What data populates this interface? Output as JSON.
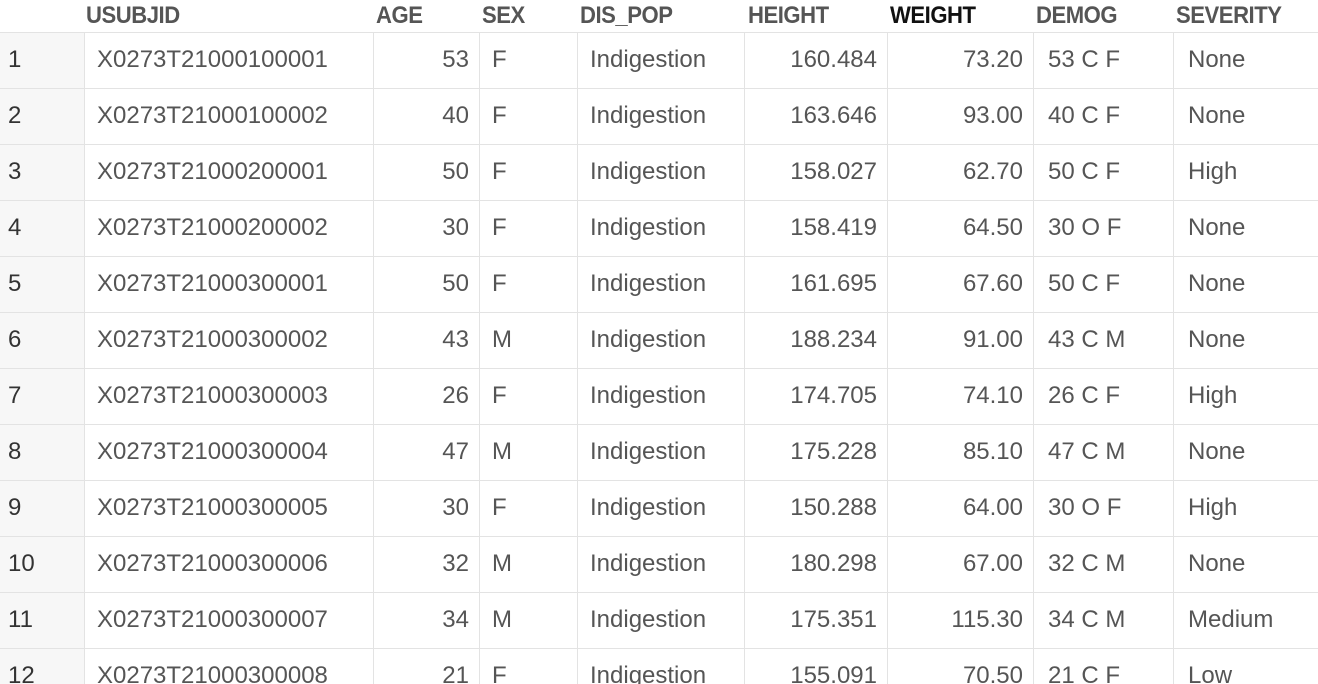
{
  "columns": [
    {
      "key": "usubjid",
      "label": "USUBJID"
    },
    {
      "key": "age",
      "label": "AGE"
    },
    {
      "key": "sex",
      "label": "SEX"
    },
    {
      "key": "dis_pop",
      "label": "DIS_POP"
    },
    {
      "key": "height",
      "label": "HEIGHT"
    },
    {
      "key": "weight",
      "label": "WEIGHT"
    },
    {
      "key": "demog",
      "label": "DEMOG"
    },
    {
      "key": "severity",
      "label": "SEVERITY"
    }
  ],
  "rows": [
    {
      "n": "1",
      "usubjid": "X0273T21000100001",
      "age": "53",
      "sex": "F",
      "dis_pop": "Indigestion",
      "height": "160.484",
      "weight": "73.20",
      "demog": "53 C F",
      "severity": "None"
    },
    {
      "n": "2",
      "usubjid": "X0273T21000100002",
      "age": "40",
      "sex": "F",
      "dis_pop": "Indigestion",
      "height": "163.646",
      "weight": "93.00",
      "demog": "40 C F",
      "severity": "None"
    },
    {
      "n": "3",
      "usubjid": "X0273T21000200001",
      "age": "50",
      "sex": "F",
      "dis_pop": "Indigestion",
      "height": "158.027",
      "weight": "62.70",
      "demog": "50 C F",
      "severity": "High"
    },
    {
      "n": "4",
      "usubjid": "X0273T21000200002",
      "age": "30",
      "sex": "F",
      "dis_pop": "Indigestion",
      "height": "158.419",
      "weight": "64.50",
      "demog": "30 O F",
      "severity": "None"
    },
    {
      "n": "5",
      "usubjid": "X0273T21000300001",
      "age": "50",
      "sex": "F",
      "dis_pop": "Indigestion",
      "height": "161.695",
      "weight": "67.60",
      "demog": "50 C F",
      "severity": "None"
    },
    {
      "n": "6",
      "usubjid": "X0273T21000300002",
      "age": "43",
      "sex": "M",
      "dis_pop": "Indigestion",
      "height": "188.234",
      "weight": "91.00",
      "demog": "43 C M",
      "severity": "None"
    },
    {
      "n": "7",
      "usubjid": "X0273T21000300003",
      "age": "26",
      "sex": "F",
      "dis_pop": "Indigestion",
      "height": "174.705",
      "weight": "74.10",
      "demog": "26 C F",
      "severity": "High"
    },
    {
      "n": "8",
      "usubjid": "X0273T21000300004",
      "age": "47",
      "sex": "M",
      "dis_pop": "Indigestion",
      "height": "175.228",
      "weight": "85.10",
      "demog": "47 C M",
      "severity": "None"
    },
    {
      "n": "9",
      "usubjid": "X0273T21000300005",
      "age": "30",
      "sex": "F",
      "dis_pop": "Indigestion",
      "height": "150.288",
      "weight": "64.00",
      "demog": "30 O F",
      "severity": "High"
    },
    {
      "n": "10",
      "usubjid": "X0273T21000300006",
      "age": "32",
      "sex": "M",
      "dis_pop": "Indigestion",
      "height": "180.298",
      "weight": "67.00",
      "demog": "32 C M",
      "severity": "None"
    },
    {
      "n": "11",
      "usubjid": "X0273T21000300007",
      "age": "34",
      "sex": "M",
      "dis_pop": "Indigestion",
      "height": "175.351",
      "weight": "115.30",
      "demog": "34 C M",
      "severity": "Medium"
    },
    {
      "n": "12",
      "usubjid": "X0273T21000300008",
      "age": "21",
      "sex": "F",
      "dis_pop": "Indigestion",
      "height": "155.091",
      "weight": "70.50",
      "demog": "21 C F",
      "severity": "Low"
    }
  ]
}
